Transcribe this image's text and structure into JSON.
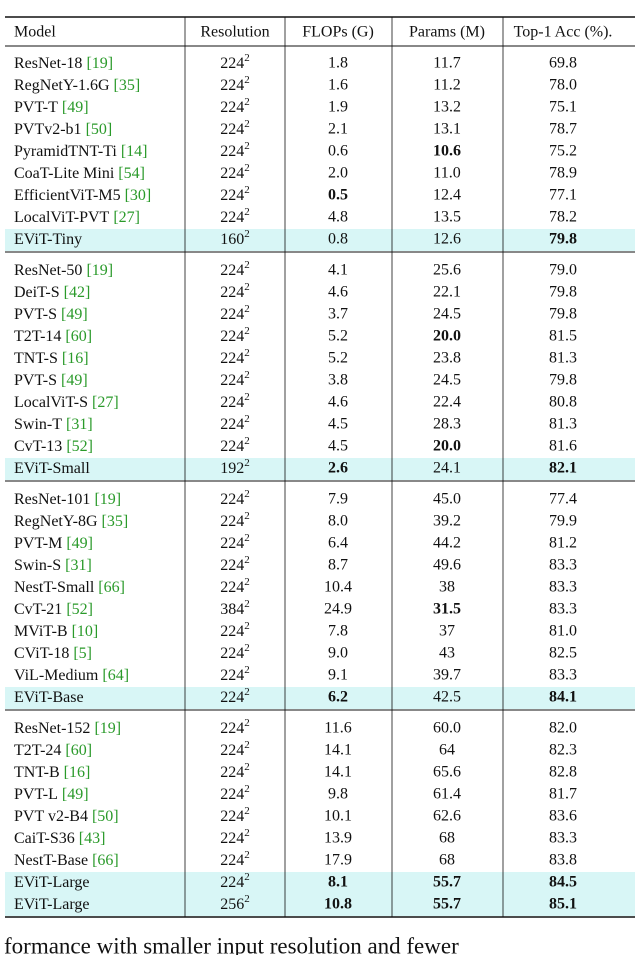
{
  "table": {
    "header": [
      "Model",
      "Resolution",
      "FLOPs (G)",
      "Params (M)",
      "Top-1 Acc (%)."
    ],
    "groups": [
      [
        {
          "model": "ResNet-18",
          "cite": "[19]",
          "res": "224",
          "res_exp": "2",
          "flops": "1.8",
          "params": "11.7",
          "acc": "69.8"
        },
        {
          "model": "RegNetY-1.6G",
          "cite": "[35]",
          "res": "224",
          "res_exp": "2",
          "flops": "1.6",
          "params": "11.2",
          "acc": "78.0"
        },
        {
          "model": "PVT-T",
          "cite": "[49]",
          "res": "224",
          "res_exp": "2",
          "flops": "1.9",
          "params": "13.2",
          "acc": "75.1"
        },
        {
          "model": "PVTv2-b1",
          "cite": "[50]",
          "res": "224",
          "res_exp": "2",
          "flops": "2.1",
          "params": "13.1",
          "acc": "78.7"
        },
        {
          "model": "PyramidTNT-Ti",
          "cite": "[14]",
          "res": "224",
          "res_exp": "2",
          "flops": "0.6",
          "params": "10.6",
          "acc": "75.2",
          "bold": [
            "params"
          ]
        },
        {
          "model": "CoaT-Lite Mini",
          "cite": "[54]",
          "res": "224",
          "res_exp": "2",
          "flops": "2.0",
          "params": "11.0",
          "acc": "78.9"
        },
        {
          "model": "EfficientViT-M5",
          "cite": "[30]",
          "res": "224",
          "res_exp": "2",
          "flops": "0.5",
          "params": "12.4",
          "acc": "77.1",
          "bold": [
            "flops"
          ]
        },
        {
          "model": "LocalViT-PVT",
          "cite": "[27]",
          "res": "224",
          "res_exp": "2",
          "flops": "4.8",
          "params": "13.5",
          "acc": "78.2"
        },
        {
          "model": "EViT-Tiny",
          "res": "160",
          "res_exp": "2",
          "flops": "0.8",
          "params": "12.6",
          "acc": "79.8",
          "bold": [
            "acc"
          ],
          "highlight": true
        }
      ],
      [
        {
          "model": "ResNet-50",
          "cite": "[19]",
          "res": "224",
          "res_exp": "2",
          "flops": "4.1",
          "params": "25.6",
          "acc": "79.0"
        },
        {
          "model": "DeiT-S",
          "cite": "[42]",
          "res": "224",
          "res_exp": "2",
          "flops": "4.6",
          "params": "22.1",
          "acc": "79.8"
        },
        {
          "model": "PVT-S",
          "cite": "[49]",
          "res": "224",
          "res_exp": "2",
          "flops": "3.7",
          "params": "24.5",
          "acc": "79.8"
        },
        {
          "model": "T2T-14",
          "cite": "[60]",
          "res": "224",
          "res_exp": "2",
          "flops": "5.2",
          "params": "20.0",
          "acc": "81.5",
          "bold": [
            "params"
          ]
        },
        {
          "model": "TNT-S",
          "cite": "[16]",
          "res": "224",
          "res_exp": "2",
          "flops": "5.2",
          "params": "23.8",
          "acc": "81.3"
        },
        {
          "model": "PVT-S",
          "cite": "[49]",
          "res": "224",
          "res_exp": "2",
          "flops": "3.8",
          "params": "24.5",
          "acc": "79.8"
        },
        {
          "model": "LocalViT-S",
          "cite": "[27]",
          "res": "224",
          "res_exp": "2",
          "flops": "4.6",
          "params": "22.4",
          "acc": "80.8"
        },
        {
          "model": "Swin-T",
          "cite": "[31]",
          "res": "224",
          "res_exp": "2",
          "flops": "4.5",
          "params": "28.3",
          "acc": "81.3"
        },
        {
          "model": "CvT-13",
          "cite": "[52]",
          "res": "224",
          "res_exp": "2",
          "flops": "4.5",
          "params": "20.0",
          "acc": "81.6",
          "bold": [
            "params"
          ]
        },
        {
          "model": "EViT-Small",
          "res": "192",
          "res_exp": "2",
          "flops": "2.6",
          "params": "24.1",
          "acc": "82.1",
          "bold": [
            "flops",
            "acc"
          ],
          "highlight": true
        }
      ],
      [
        {
          "model": "ResNet-101",
          "cite": "[19]",
          "res": "224",
          "res_exp": "2",
          "flops": "7.9",
          "params": "45.0",
          "acc": "77.4"
        },
        {
          "model": "RegNetY-8G",
          "cite": "[35]",
          "res": "224",
          "res_exp": "2",
          "flops": "8.0",
          "params": "39.2",
          "acc": "79.9"
        },
        {
          "model": "PVT-M",
          "cite": "[49]",
          "res": "224",
          "res_exp": "2",
          "flops": "6.4",
          "params": "44.2",
          "acc": "81.2"
        },
        {
          "model": "Swin-S",
          "cite": "[31]",
          "res": "224",
          "res_exp": "2",
          "flops": "8.7",
          "params": "49.6",
          "acc": "83.3"
        },
        {
          "model": "NestT-Small",
          "cite": "[66]",
          "res": "224",
          "res_exp": "2",
          "flops": "10.4",
          "params": "38",
          "acc": "83.3"
        },
        {
          "model": "CvT-21",
          "cite": "[52]",
          "res": "384",
          "res_exp": "2",
          "flops": "24.9",
          "params": "31.5",
          "acc": "83.3",
          "bold": [
            "params"
          ]
        },
        {
          "model": "MViT-B",
          "cite": "[10]",
          "res": "224",
          "res_exp": "2",
          "flops": "7.8",
          "params": "37",
          "acc": "81.0"
        },
        {
          "model": "CViT-18",
          "cite": "[5]",
          "res": "224",
          "res_exp": "2",
          "flops": "9.0",
          "params": "43",
          "acc": "82.5"
        },
        {
          "model": "ViL-Medium",
          "cite": "[64]",
          "res": "224",
          "res_exp": "2",
          "flops": "9.1",
          "params": "39.7",
          "acc": "83.3"
        },
        {
          "model": "EViT-Base",
          "res": "224",
          "res_exp": "2",
          "flops": "6.2",
          "params": "42.5",
          "acc": "84.1",
          "bold": [
            "flops",
            "acc"
          ],
          "highlight": true
        }
      ],
      [
        {
          "model": "ResNet-152",
          "cite": "[19]",
          "res": "224",
          "res_exp": "2",
          "flops": "11.6",
          "params": "60.0",
          "acc": "82.0"
        },
        {
          "model": "T2T-24",
          "cite": "[60]",
          "res": "224",
          "res_exp": "2",
          "flops": "14.1",
          "params": "64",
          "acc": "82.3"
        },
        {
          "model": "TNT-B",
          "cite": "[16]",
          "res": "224",
          "res_exp": "2",
          "flops": "14.1",
          "params": "65.6",
          "acc": "82.8"
        },
        {
          "model": "PVT-L",
          "cite": "[49]",
          "res": "224",
          "res_exp": "2",
          "flops": "9.8",
          "params": "61.4",
          "acc": "81.7"
        },
        {
          "model": "PVT v2-B4",
          "cite": "[50]",
          "res": "224",
          "res_exp": "2",
          "flops": "10.1",
          "params": "62.6",
          "acc": "83.6"
        },
        {
          "model": "CaiT-S36",
          "cite": "[43]",
          "res": "224",
          "res_exp": "2",
          "flops": "13.9",
          "params": "68",
          "acc": "83.3"
        },
        {
          "model": "NestT-Base",
          "cite": "[66]",
          "res": "224",
          "res_exp": "2",
          "flops": "17.9",
          "params": "68",
          "acc": "83.8"
        },
        {
          "model": "EViT-Large",
          "res": "224",
          "res_exp": "2",
          "flops": "8.1",
          "params": "55.7",
          "acc": "84.5",
          "bold": [
            "flops",
            "params",
            "acc"
          ],
          "highlight": true
        },
        {
          "model": "EViT-Large",
          "res": "256",
          "res_exp": "2",
          "flops": "10.8",
          "params": "55.7",
          "acc": "85.1",
          "bold": [
            "flops",
            "params",
            "acc"
          ],
          "highlight": true
        }
      ]
    ]
  },
  "body_fragment": "formance with smaller input resolution and fewer"
}
